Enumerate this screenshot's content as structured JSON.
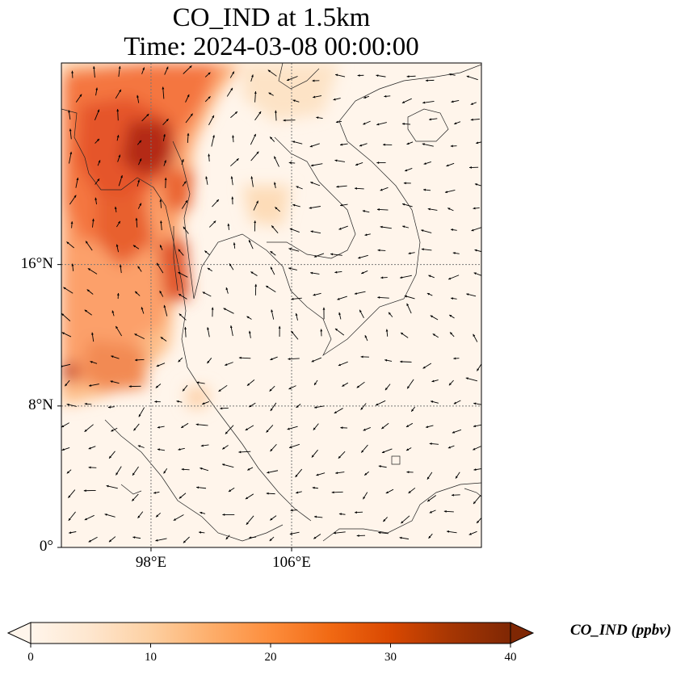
{
  "title_line1": "CO_IND at 1.5km",
  "title_line2": "Time: 2024-03-08 00:00:00",
  "map": {
    "extent_lon": [
      92.9,
      116.8
    ],
    "extent_lat": [
      0,
      27.4
    ],
    "lat_ticks": [
      {
        "value": 16,
        "label": "16°N"
      },
      {
        "value": 8,
        "label": "8°N"
      },
      {
        "value": 0,
        "label": "0°"
      }
    ],
    "lon_ticks": [
      {
        "value": 98,
        "label": "98°E"
      },
      {
        "value": 106,
        "label": "106°E"
      }
    ]
  },
  "colorbar": {
    "label": "CO_IND (ppbv)",
    "min": 0,
    "max": 40,
    "ticks": [
      {
        "value": 0,
        "label": "0"
      },
      {
        "value": 10,
        "label": "10"
      },
      {
        "value": 20,
        "label": "20"
      },
      {
        "value": 30,
        "label": "30"
      },
      {
        "value": 40,
        "label": "40"
      }
    ],
    "colormap": [
      "#fff5eb",
      "#fee6ce",
      "#fdd0a2",
      "#fdae6b",
      "#fd8d3c",
      "#f16913",
      "#d94801",
      "#a63603",
      "#7f2704"
    ],
    "extend": "both"
  },
  "colors": {
    "coast": "#222222",
    "grid": "#777777",
    "arrow": "#000000"
  }
}
